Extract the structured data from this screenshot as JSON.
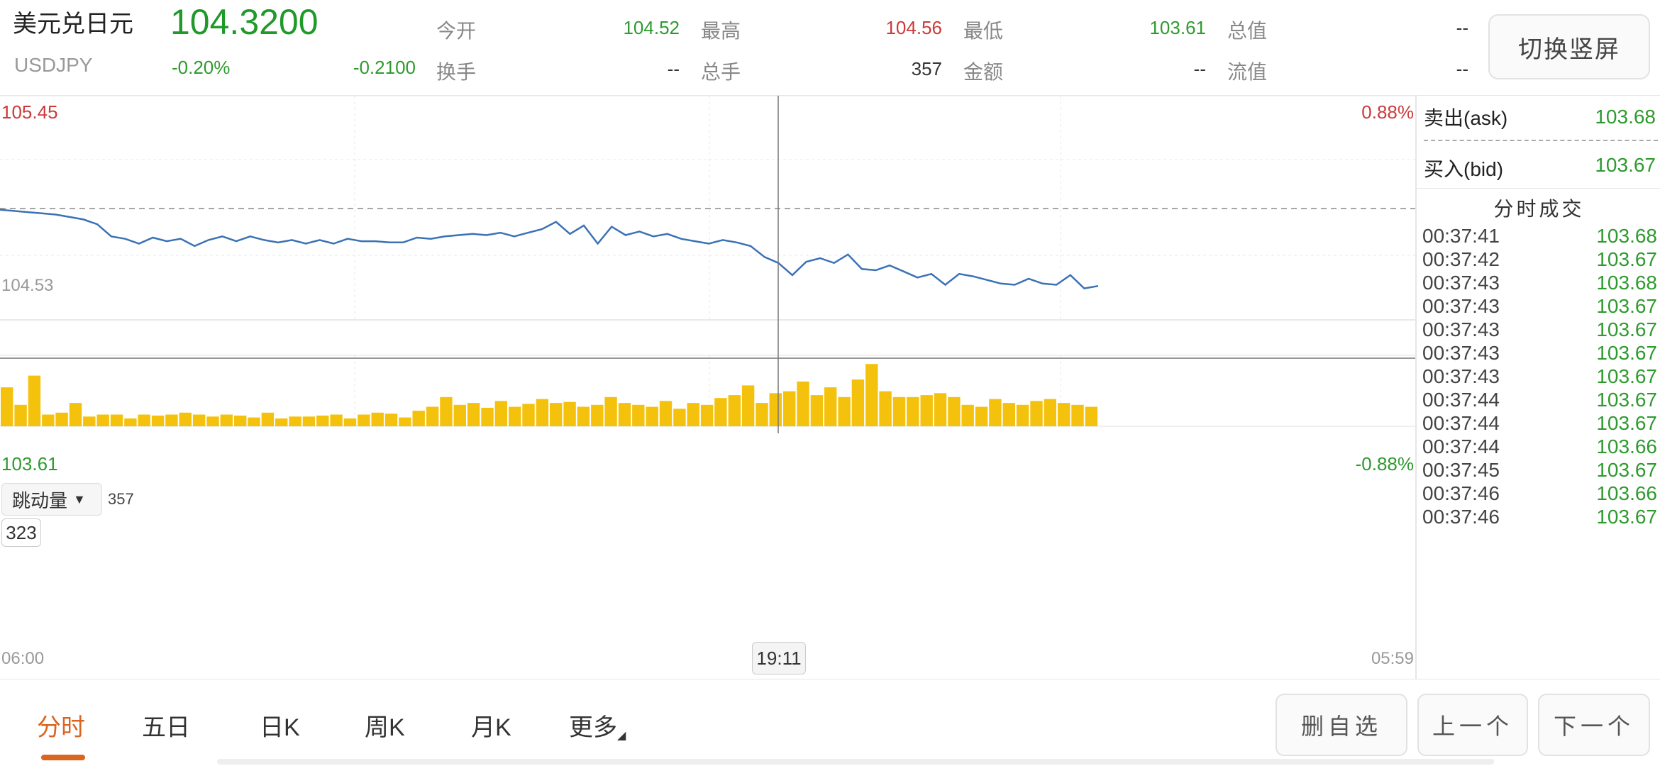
{
  "header": {
    "name": "美元兑日元",
    "price": "104.3200",
    "code": "USDJPY",
    "change_pct": "-0.20%",
    "change": "-0.2100",
    "stats": [
      {
        "label": "今开",
        "value": "104.52",
        "color": "#2e9a2e"
      },
      {
        "label": "最高",
        "value": "104.56",
        "color": "#cc3a3a"
      },
      {
        "label": "最低",
        "value": "103.61",
        "color": "#2e9a2e"
      },
      {
        "label": "总值",
        "value": "--",
        "color": "#333333"
      },
      {
        "label": "换手",
        "value": "--",
        "color": "#333333"
      },
      {
        "label": "总手",
        "value": "357",
        "color": "#333333"
      },
      {
        "label": "金额",
        "value": "--",
        "color": "#333333"
      },
      {
        "label": "流值",
        "value": "--",
        "color": "#333333"
      }
    ],
    "toggle_label": "切换竖屏"
  },
  "chart": {
    "upper_price": "105.45",
    "lower_price": "103.61",
    "ref_price": "104.53",
    "upper_pct": "0.88%",
    "lower_pct": "-0.88%",
    "volume_selector": "跳动量",
    "volume_value": "357",
    "crosshair_volume": "323",
    "crosshair_time": "19:11",
    "x_start": "06:00",
    "x_end": "05:59"
  },
  "chart_data": {
    "type": "line",
    "x_range": [
      "06:00",
      "05:59"
    ],
    "ylim": [
      103.61,
      105.45
    ],
    "reference": 104.53,
    "series": [
      {
        "values": [
          104.52,
          104.51,
          104.5,
          104.49,
          104.48,
          104.46,
          104.44,
          104.4,
          104.3,
          104.28,
          104.24,
          104.29,
          104.26,
          104.28,
          104.22,
          104.27,
          104.3,
          104.26,
          104.3,
          104.27,
          104.25,
          104.27,
          104.24,
          104.27,
          104.24,
          104.28,
          104.26,
          104.26,
          104.25,
          104.25,
          104.29,
          104.28,
          104.3,
          104.31,
          104.32,
          104.31,
          104.33,
          104.3,
          104.33,
          104.36,
          104.42,
          104.32,
          104.39,
          104.24,
          104.38,
          104.31,
          104.34,
          104.3,
          104.32,
          104.28,
          104.26,
          104.24,
          104.27,
          104.25,
          104.22,
          104.13,
          104.08,
          103.98,
          104.09,
          104.12,
          104.08,
          104.15,
          104.03,
          104.02,
          104.06,
          104.01,
          103.96,
          103.99,
          103.9,
          103.99,
          103.97,
          103.94,
          103.91,
          103.9,
          103.95,
          103.91,
          103.9,
          103.98,
          103.87,
          103.89
        ]
      }
    ],
    "volume": {
      "ylim": [
        0,
        357
      ],
      "values": [
        200,
        110,
        260,
        60,
        70,
        120,
        50,
        60,
        60,
        40,
        60,
        55,
        60,
        70,
        60,
        50,
        60,
        55,
        45,
        70,
        40,
        50,
        50,
        55,
        60,
        40,
        60,
        70,
        65,
        45,
        80,
        100,
        150,
        110,
        120,
        95,
        130,
        100,
        115,
        140,
        120,
        125,
        100,
        110,
        150,
        120,
        110,
        100,
        130,
        90,
        120,
        110,
        145,
        160,
        210,
        120,
        170,
        180,
        230,
        160,
        200,
        150,
        240,
        320,
        180,
        150,
        150,
        160,
        170,
        150,
        110,
        100,
        140,
        120,
        110,
        130,
        140,
        120,
        110,
        100
      ]
    }
  },
  "sidebar": {
    "ask_label": "卖出(ask)",
    "ask_value": "103.68",
    "bid_label": "买入(bid)",
    "bid_value": "103.67",
    "trades_title": "分时成交",
    "trades": [
      {
        "time": "00:37:41",
        "price": "103.68"
      },
      {
        "time": "00:37:42",
        "price": "103.67"
      },
      {
        "time": "00:37:43",
        "price": "103.68"
      },
      {
        "time": "00:37:43",
        "price": "103.67"
      },
      {
        "time": "00:37:43",
        "price": "103.67"
      },
      {
        "time": "00:37:43",
        "price": "103.67"
      },
      {
        "time": "00:37:43",
        "price": "103.67"
      },
      {
        "time": "00:37:44",
        "price": "103.67"
      },
      {
        "time": "00:37:44",
        "price": "103.67"
      },
      {
        "time": "00:37:44",
        "price": "103.66"
      },
      {
        "time": "00:37:45",
        "price": "103.67"
      },
      {
        "time": "00:37:46",
        "price": "103.66"
      },
      {
        "time": "00:37:46",
        "price": "103.67"
      }
    ]
  },
  "bottom": {
    "tabs": [
      "分时",
      "五日",
      "日K",
      "周K",
      "月K",
      "更多"
    ],
    "delete_label": "删自选",
    "prev_label": "上一个",
    "next_label": "下一个"
  },
  "colors": {
    "line": "#3a72b5",
    "volume": "#f4c20d",
    "accent": "#d9651f",
    "up": "#cc3a3a",
    "down": "#2e9a2e"
  }
}
